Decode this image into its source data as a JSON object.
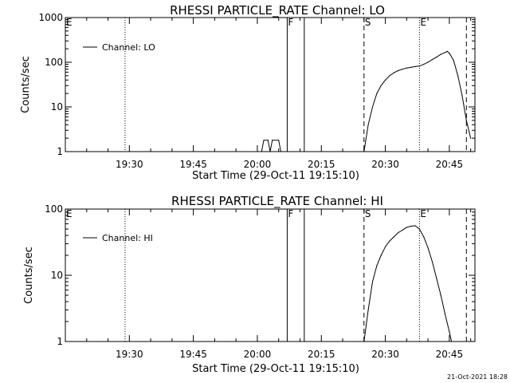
{
  "footer_date": "21-Oct-2021 18:28",
  "chart_data": [
    {
      "type": "line",
      "title": "RHESSI PARTICLE_RATE Channel: LO",
      "xlabel": "Start Time (29-Oct-11 19:15:10)",
      "ylabel": "Counts/sec",
      "y_scale": "log",
      "ylim": [
        1,
        1000
      ],
      "yticks": [
        {
          "v": 1,
          "label": "1"
        },
        {
          "v": 10,
          "label": "10"
        },
        {
          "v": 100,
          "label": "100"
        },
        {
          "v": 1000,
          "label": "1000"
        }
      ],
      "xlim": [
        "19:15",
        "20:51"
      ],
      "xticks": [
        "19:30",
        "19:45",
        "20:00",
        "20:15",
        "20:30",
        "20:45"
      ],
      "legend": {
        "position": "top-left",
        "label": "Channel: LO"
      },
      "markers": [
        {
          "time": "19:29",
          "style": "dotted",
          "label": ""
        },
        {
          "time": "19:15",
          "style": "none",
          "label": "E"
        },
        {
          "time": "20:07",
          "style": "solid",
          "label": "F"
        },
        {
          "time": "20:11",
          "style": "solid",
          "label": ""
        },
        {
          "time": "20:25",
          "style": "dashed",
          "label": "S"
        },
        {
          "time": "20:38",
          "style": "dotted",
          "label": "E"
        },
        {
          "time": "20:49",
          "style": "dashed",
          "label": ""
        },
        {
          "time": "20:51",
          "style": "dotted",
          "label": ""
        }
      ],
      "series": [
        {
          "points": [
            [
              "20:01",
              1
            ],
            [
              "20:01.5",
              1.8
            ],
            [
              "20:02.5",
              1.8
            ],
            [
              "20:03",
              1
            ],
            [
              "20:03.5",
              1.8
            ],
            [
              "20:05",
              1.8
            ],
            [
              "20:05.5",
              1
            ],
            [
              "20:25",
              1
            ],
            [
              "20:26",
              4
            ],
            [
              "20:27",
              10
            ],
            [
              "20:28",
              20
            ],
            [
              "20:29",
              30
            ],
            [
              "20:30",
              40
            ],
            [
              "20:31",
              50
            ],
            [
              "20:32",
              58
            ],
            [
              "20:33",
              65
            ],
            [
              "20:34",
              70
            ],
            [
              "20:35",
              74
            ],
            [
              "20:36",
              77
            ],
            [
              "20:37",
              80
            ],
            [
              "20:38",
              82
            ],
            [
              "20:39",
              90
            ],
            [
              "20:40",
              100
            ],
            [
              "20:41",
              115
            ],
            [
              "20:42",
              130
            ],
            [
              "20:43",
              150
            ],
            [
              "20:44",
              165
            ],
            [
              "20:44.5",
              175
            ],
            [
              "20:45",
              160
            ],
            [
              "20:46",
              110
            ],
            [
              "20:47",
              50
            ],
            [
              "20:48",
              18
            ],
            [
              "20:49",
              5
            ],
            [
              "20:50",
              2
            ]
          ]
        }
      ]
    },
    {
      "type": "line",
      "title": "RHESSI PARTICLE_RATE Channel: HI",
      "xlabel": "Start Time (29-Oct-11 19:15:10)",
      "ylabel": "Counts/sec",
      "y_scale": "log",
      "ylim": [
        1,
        100
      ],
      "yticks": [
        {
          "v": 1,
          "label": "1"
        },
        {
          "v": 10,
          "label": "10"
        },
        {
          "v": 100,
          "label": "100"
        }
      ],
      "xlim": [
        "19:15",
        "20:51"
      ],
      "xticks": [
        "19:30",
        "19:45",
        "20:00",
        "20:15",
        "20:30",
        "20:45"
      ],
      "legend": {
        "position": "top-left",
        "label": "Channel: HI"
      },
      "markers": [
        {
          "time": "19:29",
          "style": "dotted",
          "label": ""
        },
        {
          "time": "19:15",
          "style": "none",
          "label": "E"
        },
        {
          "time": "20:07",
          "style": "solid",
          "label": "F"
        },
        {
          "time": "20:11",
          "style": "solid",
          "label": ""
        },
        {
          "time": "20:25",
          "style": "dashed",
          "label": "S"
        },
        {
          "time": "20:38",
          "style": "dotted",
          "label": "E"
        },
        {
          "time": "20:49",
          "style": "dashed",
          "label": ""
        },
        {
          "time": "20:51",
          "style": "dotted",
          "label": ""
        }
      ],
      "series": [
        {
          "points": [
            [
              "20:25",
              1
            ],
            [
              "20:26",
              3
            ],
            [
              "20:27",
              8
            ],
            [
              "20:28",
              14
            ],
            [
              "20:29",
              20
            ],
            [
              "20:30",
              27
            ],
            [
              "20:31",
              33
            ],
            [
              "20:32",
              38
            ],
            [
              "20:33",
              44
            ],
            [
              "20:34",
              48
            ],
            [
              "20:35",
              53
            ],
            [
              "20:36",
              55
            ],
            [
              "20:37",
              56
            ],
            [
              "20:38",
              50
            ],
            [
              "20:39",
              38
            ],
            [
              "20:40",
              26
            ],
            [
              "20:41",
              16
            ],
            [
              "20:42",
              9
            ],
            [
              "20:43",
              5
            ],
            [
              "20:44",
              2.6
            ],
            [
              "20:45",
              1.4
            ],
            [
              "20:45.5",
              1
            ]
          ]
        }
      ]
    }
  ]
}
